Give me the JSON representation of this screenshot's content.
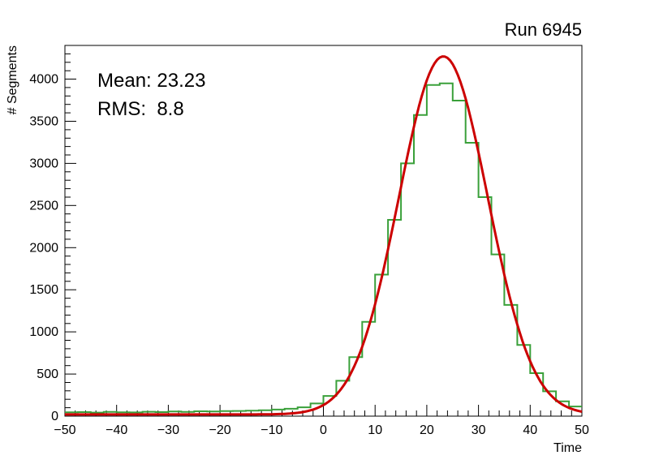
{
  "title": "Run 6945",
  "stats": {
    "mean_label": "Mean: 23.23",
    "rms_label": "RMS:  8.8"
  },
  "chart_data": {
    "type": "bar",
    "subtype": "histogram-with-gaussian-fit",
    "title": "Run 6945",
    "xlabel": "Time",
    "ylabel": "# Segments",
    "xlim": [
      -50,
      50
    ],
    "ylim": [
      0,
      4400
    ],
    "grid": false,
    "x_major_step": 10,
    "x_minor_step": 2,
    "y_major_step": 500,
    "y_minor_step": 100,
    "x_tick_values": [
      -50,
      -40,
      -30,
      -20,
      -10,
      0,
      10,
      20,
      30,
      40,
      50
    ],
    "x_tick_labels": [
      "−50",
      "−40",
      "−30",
      "−20",
      "−10",
      "0",
      "10",
      "20",
      "30",
      "40",
      "50"
    ],
    "y_tick_values": [
      0,
      500,
      1000,
      1500,
      2000,
      2500,
      3000,
      3500,
      4000
    ],
    "y_tick_labels": [
      "0",
      "500",
      "1000",
      "1500",
      "2000",
      "2500",
      "3000",
      "3500",
      "4000"
    ],
    "histogram": {
      "name": "time-segments-histogram",
      "color": "#3AA03A",
      "line_width": 2,
      "bin_start": -50,
      "bin_width": 2.5,
      "counts": [
        45,
        48,
        42,
        50,
        46,
        44,
        52,
        48,
        55,
        50,
        58,
        55,
        60,
        62,
        65,
        70,
        78,
        88,
        105,
        150,
        240,
        420,
        700,
        1120,
        1680,
        2330,
        3000,
        3575,
        3930,
        3950,
        3745,
        3245,
        2600,
        1920,
        1320,
        845,
        510,
        295,
        175,
        115
      ]
    },
    "fit": {
      "name": "gaussian-fit",
      "color": "#CC0000",
      "line_width": 3,
      "amplitude": 4250,
      "mean": 23.2,
      "sigma": 8.6,
      "baseline": 20
    }
  }
}
